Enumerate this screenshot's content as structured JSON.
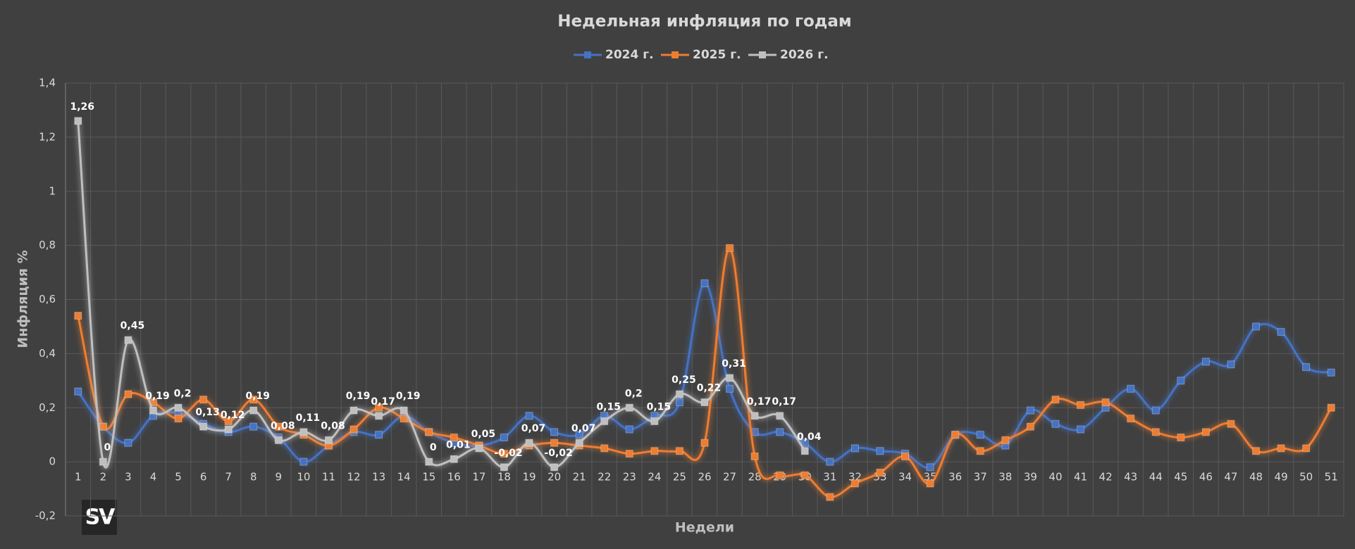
{
  "chart_data": {
    "type": "line",
    "title": "Недельная инфляция по годам",
    "x_label": "Недели",
    "y_label": "Инфляция %",
    "logo": "SV",
    "legend": "top",
    "grid": true,
    "categories": [
      "1",
      "2",
      "3",
      "4",
      "5",
      "6",
      "7",
      "8",
      "9",
      "10",
      "11",
      "12",
      "13",
      "14",
      "15",
      "16",
      "17",
      "18",
      "19",
      "20",
      "21",
      "22",
      "23",
      "24",
      "25",
      "26",
      "27",
      "28",
      "29",
      "30",
      "31",
      "32",
      "33",
      "34",
      "35",
      "36",
      "37",
      "38",
      "39",
      "40",
      "41",
      "42",
      "43",
      "44",
      "45",
      "46",
      "47",
      "48",
      "49",
      "50",
      "51"
    ],
    "ylim": [
      -0.2,
      1.4
    ],
    "yticks": [
      {
        "value": -0.2,
        "label": "-0,2"
      },
      0,
      {
        "value": 0.2,
        "label": "0,2"
      },
      {
        "value": 0.4,
        "label": "0,4"
      },
      {
        "value": 0.6,
        "label": "0,6"
      },
      {
        "value": 0.8,
        "label": "0,8"
      },
      1,
      {
        "value": 1.2,
        "label": "1,2"
      },
      {
        "value": 1.4,
        "label": "1,4"
      }
    ],
    "series": [
      {
        "name": "2024 г.",
        "color": "#4472c4",
        "values": [
          0.26,
          0.13,
          0.07,
          0.17,
          0.18,
          0.14,
          0.11,
          0.13,
          0.09,
          0.0,
          0.06,
          0.11,
          0.1,
          0.17,
          0.11,
          0.07,
          0.06,
          0.09,
          0.17,
          0.11,
          0.1,
          0.17,
          0.12,
          0.17,
          0.22,
          0.66,
          0.27,
          0.11,
          0.11,
          0.07,
          0.0,
          0.05,
          0.04,
          0.03,
          -0.02,
          0.1,
          0.1,
          0.06,
          0.19,
          0.14,
          0.12,
          0.2,
          0.27,
          0.19,
          0.3,
          0.37,
          0.36,
          0.5,
          0.48,
          0.35,
          0.33
        ]
      },
      {
        "name": "2025 г.",
        "color": "#ed7d31",
        "values": [
          0.54,
          0.13,
          0.25,
          0.22,
          0.16,
          0.23,
          0.15,
          0.23,
          0.13,
          0.1,
          0.06,
          0.12,
          0.2,
          0.16,
          0.11,
          0.09,
          0.06,
          0.03,
          0.06,
          0.07,
          0.06,
          0.05,
          0.03,
          0.04,
          0.04,
          0.07,
          0.79,
          0.02,
          -0.05,
          -0.05,
          -0.13,
          -0.08,
          -0.04,
          0.02,
          -0.08,
          0.1,
          0.04,
          0.08,
          0.13,
          0.23,
          0.21,
          0.22,
          0.16,
          0.11,
          0.09,
          0.11,
          0.14,
          0.04,
          0.05,
          0.05,
          0.2
        ]
      },
      {
        "name": "2026 г.",
        "color": "#bfbfbf",
        "values": [
          1.26,
          0,
          0.45,
          0.19,
          0.2,
          0.13,
          0.12,
          0.19,
          0.08,
          0.11,
          0.08,
          0.19,
          0.17,
          0.19,
          0,
          0.01,
          0.05,
          -0.02,
          0.07,
          -0.02,
          0.07,
          0.15,
          0.2,
          0.15,
          0.25,
          0.22,
          0.31,
          0.17,
          0.17,
          0.04,
          null,
          null,
          null,
          null,
          null,
          null,
          null,
          null,
          null,
          null,
          null,
          null,
          null,
          null,
          null,
          null,
          null,
          null,
          null,
          null,
          null
        ],
        "value_labels": [
          "1,26",
          "0",
          "0,45",
          "0,19",
          "0,2",
          "0,13",
          "0,12",
          "0,19",
          "0,08",
          "0,11",
          "0,08",
          "0,19",
          "0,17",
          "0,19",
          "0",
          "0,01",
          "0,05",
          "-0,02",
          "0,07",
          "-0,02",
          "0,07",
          "0,15",
          "0,2",
          "0,15",
          "0,25",
          "0,22",
          "0,31",
          "0,17",
          "0,17",
          "0,04",
          null,
          null,
          null,
          null,
          null,
          null,
          null,
          null,
          null,
          null,
          null,
          null,
          null,
          null,
          null,
          null,
          null,
          null,
          null,
          null,
          null
        ]
      }
    ]
  }
}
